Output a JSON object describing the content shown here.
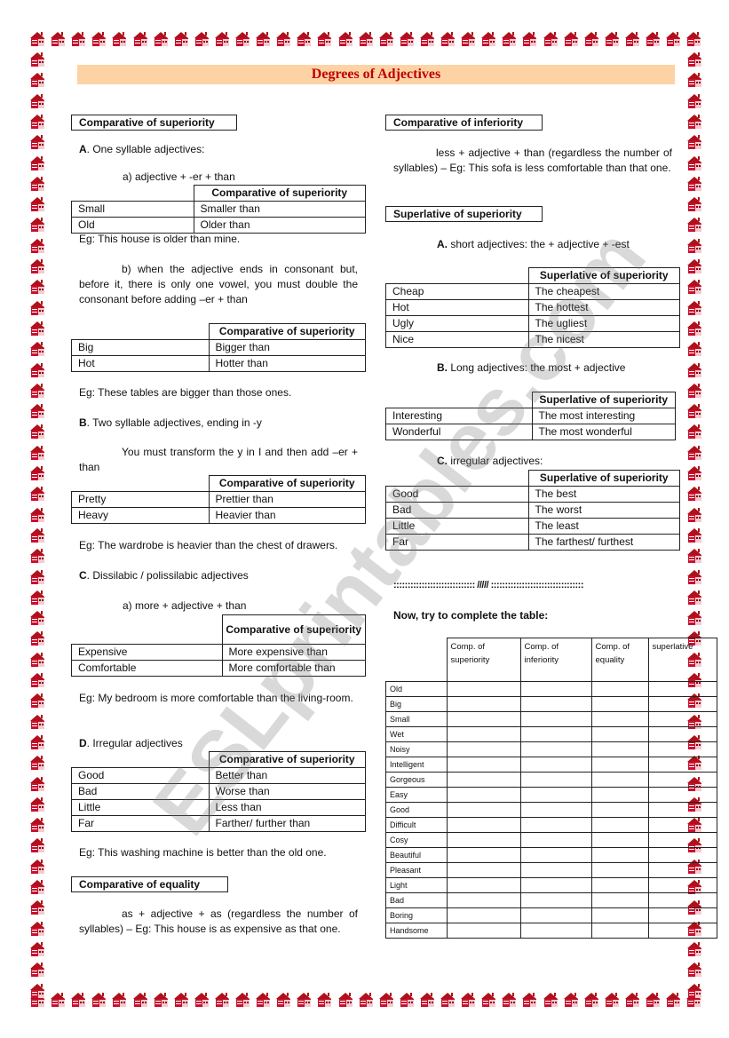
{
  "title": "Degrees of Adjectives",
  "watermark": "ESLprintables.com",
  "colors": {
    "title": "#c00000",
    "title_bar": "#fdd3a5",
    "border_houses": "#b0101a"
  },
  "border_icon": "house-icon",
  "left": {
    "box1": "Comparative of superiority",
    "a_label": "A",
    "a_text": ". One syllable adjectives:",
    "a_rule": "a) adjective + -er + than",
    "t1": {
      "header": "Comparative of superiority",
      "rows": [
        [
          "Small",
          "Smaller than"
        ],
        [
          "Old",
          "Older than"
        ]
      ]
    },
    "eg1": "Eg: This house is older than mine.",
    "b_rule": "b) when the adjective ends in consonant but, before it, there is only one vowel, you must double the consonant before adding –er + than",
    "t2": {
      "header": "Comparative of superiority",
      "rows": [
        [
          "Big",
          "Bigger than"
        ],
        [
          "Hot",
          "Hotter than"
        ]
      ]
    },
    "eg2": "Eg: These tables are bigger than those ones.",
    "b_label": "B",
    "b_text": ". Two syllable adjectives, ending in -y",
    "b_note": "You must transform the y in I and then add –er + than",
    "t3": {
      "header": "Comparative of superiority",
      "rows": [
        [
          "Pretty",
          "Prettier than"
        ],
        [
          "Heavy",
          "Heavier than"
        ]
      ]
    },
    "eg3": "Eg: The wardrobe is heavier than the chest of drawers.",
    "c_label": "C",
    "c_text": ". Dissilabic / polissilabic adjectives",
    "c_rule": "a) more + adjective + than",
    "t4": {
      "header": "Comparative of superiority",
      "rows": [
        [
          "Expensive",
          "More expensive than"
        ],
        [
          "Comfortable",
          "More comfortable than"
        ]
      ]
    },
    "eg4": "Eg: My bedroom is more comfortable than the living-room.",
    "d_label": "D",
    "d_text": ". Irregular adjectives",
    "t5": {
      "header": "Comparative of superiority",
      "rows": [
        [
          "Good",
          "Better than"
        ],
        [
          "Bad",
          "Worse than"
        ],
        [
          "Little",
          "Less than"
        ],
        [
          "Far",
          "Farther/ further than"
        ]
      ]
    },
    "eg5": "Eg: This washing machine is better than the old one.",
    "box2": "Comparative of equality",
    "equality": "as + adjective + as (regardless the number of syllables) – Eg: This house is as expensive as that one."
  },
  "right": {
    "box1": "Comparative of inferiority",
    "inferiority": "less + adjective + than (regardless the number of syllables) – Eg: This sofa is less comfortable than that one.",
    "box2": "Superlative of superiority",
    "a_label": "A.",
    "a_text": " short adjectives: the + adjective + -est",
    "t6": {
      "header": "Superlative of superiority",
      "rows": [
        [
          "Cheap",
          "The cheapest"
        ],
        [
          "Hot",
          "The hottest"
        ],
        [
          "Ugly",
          "The ugliest"
        ],
        [
          "Nice",
          "The nicest"
        ]
      ]
    },
    "b_label": "B.",
    "b_text": " Long adjectives: the most + adjective",
    "t7": {
      "header": "Superlative of superiority",
      "rows": [
        [
          "Interesting",
          "The most interesting"
        ],
        [
          "Wonderful",
          "The most wonderful"
        ]
      ]
    },
    "c_label": "C.",
    "c_text": " irregular adjectives:",
    "t8": {
      "header": "Superlative of superiority",
      "rows": [
        [
          "Good",
          "The best"
        ],
        [
          "Bad",
          "The worst"
        ],
        [
          "Little",
          "The least"
        ],
        [
          "Far",
          "The farthest/ furthest"
        ]
      ]
    },
    "divider": "::::::::::::::::::::::::::::: ///// :::::::::::::::::::::::::::::::::",
    "exercise_title": "Now, try to complete the table:",
    "exercise": {
      "headers": [
        "Comp. of superiority",
        "Comp. of inferiority",
        "Comp. of equality",
        "superlative"
      ],
      "rows": [
        "Old",
        "Big",
        "Small",
        "Wet",
        "Noisy",
        "Intelligent",
        "Gorgeous",
        "Easy",
        "Good",
        "Difficult",
        "Cosy",
        "Beautiful",
        "Pleasant",
        "Light",
        "Bad",
        "Boring",
        "Handsome"
      ]
    }
  }
}
